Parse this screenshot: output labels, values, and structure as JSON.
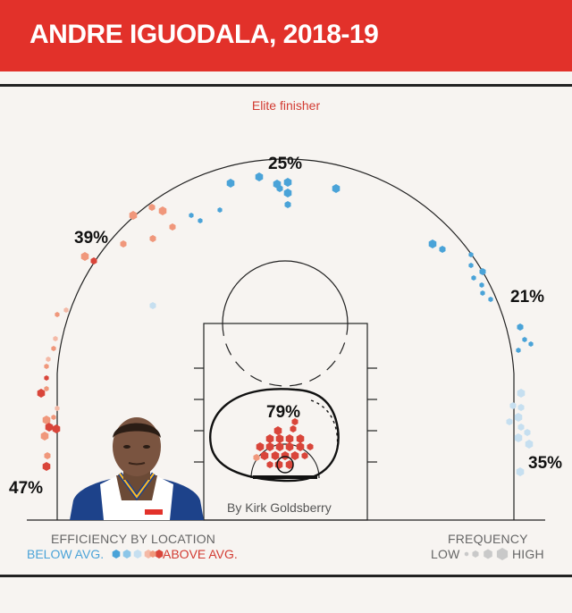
{
  "header": {
    "title": "ANDRE IGUODALA, 2018-19",
    "bg_color": "#e2312a"
  },
  "subtitle": "Elite finisher",
  "byline": "By Kirk Goldsberry",
  "legend": {
    "efficiency_title": "EFFICIENCY BY LOCATION",
    "below": "BELOW AVG.",
    "above": "ABOVE AVG.",
    "frequency_title": "FREQUENCY",
    "low": "LOW",
    "high": "HIGH"
  },
  "colors": {
    "below_avg": "#4aa3d8",
    "above_avg": "#d9453a",
    "neutral": "#c9c9c9"
  },
  "icons": {
    "player_photo": "player-headshot"
  },
  "chart_data": {
    "type": "shot-chart",
    "zones": [
      {
        "zone": "left corner three",
        "efficiency_pct": "47%",
        "rating": "above average"
      },
      {
        "zone": "left wing three",
        "efficiency_pct": "39%",
        "rating": "above average"
      },
      {
        "zone": "top of key three",
        "efficiency_pct": "25%",
        "rating": "below average"
      },
      {
        "zone": "right wing three",
        "efficiency_pct": "21%",
        "rating": "below average"
      },
      {
        "zone": "right corner three",
        "efficiency_pct": "35%",
        "rating": "below average"
      },
      {
        "zone": "restricted area",
        "efficiency_pct": "79%",
        "rating": "above average"
      }
    ]
  }
}
